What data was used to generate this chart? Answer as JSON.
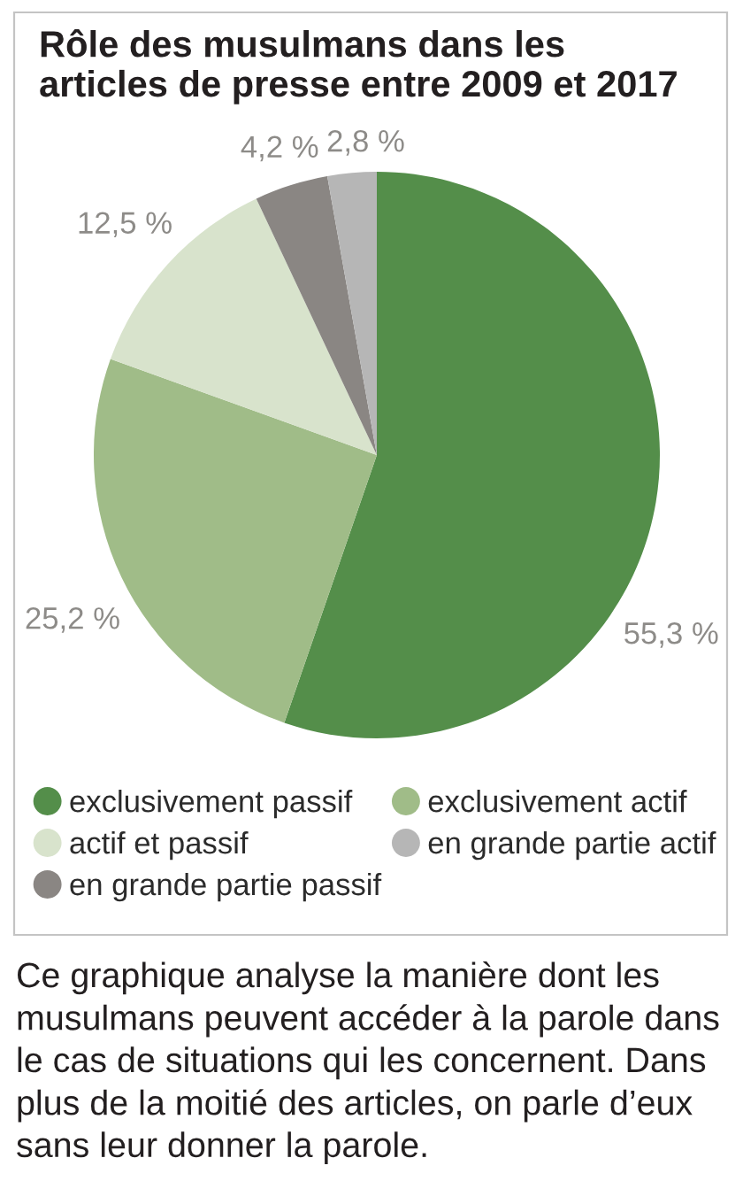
{
  "chart_data": {
    "type": "pie",
    "title": "Rôle des musulmans dans les\narticles de presse entre 2009 et 2017",
    "categories": [
      "exclusivement passif",
      "exclusivement actif",
      "actif et passif",
      "en grande partie passif",
      "en grande partie actif"
    ],
    "values": [
      55.3,
      25.2,
      12.5,
      4.2,
      2.8
    ],
    "colors": [
      "#548e4a",
      "#a0bc88",
      "#d8e3cc",
      "#8a8683",
      "#b6b6b6"
    ],
    "value_labels": [
      "55,3 %",
      "25,2 %",
      "12,5 %",
      "4,2 %",
      "2,8 %"
    ],
    "legend": "bottom",
    "annotations": [
      "Ce graphique analyse la manière dont les musulmans peuvent accéder à la parole dans le cas de situations qui les concernent. Dans plus de la moitié des articles, on parle d’eux sans leur donner la parole."
    ]
  }
}
